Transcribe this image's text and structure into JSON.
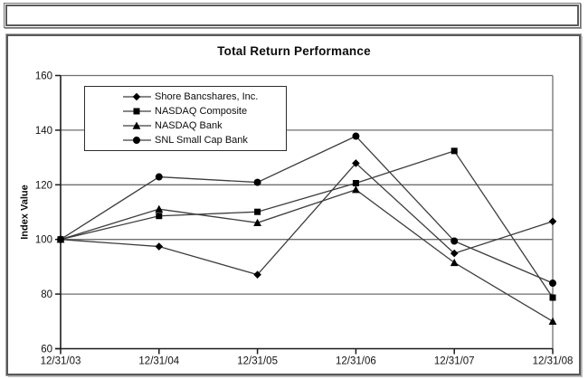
{
  "header": {
    "bar_text": ""
  },
  "chart_data": {
    "type": "line",
    "title": "Total Return Performance",
    "xlabel": "",
    "ylabel": "Index Value",
    "categories": [
      "12/31/03",
      "12/31/04",
      "12/31/05",
      "12/31/06",
      "12/31/07",
      "12/31/08"
    ],
    "series": [
      {
        "name": "Shore Bancshares, Inc.",
        "marker": "diamond",
        "values": [
          100,
          97.4,
          87.1,
          127.9,
          94.9,
          106.6
        ]
      },
      {
        "name": "NASDAQ Composite",
        "marker": "square",
        "values": [
          100,
          108.6,
          110.1,
          120.6,
          132.4,
          78.7
        ]
      },
      {
        "name": "NASDAQ Bank",
        "marker": "triangle",
        "values": [
          100,
          111.1,
          106.1,
          118.2,
          91.5,
          70.0
        ]
      },
      {
        "name": "SNL Small Cap Bank",
        "marker": "circle",
        "values": [
          100,
          122.9,
          120.9,
          137.8,
          99.4,
          84.0
        ]
      }
    ],
    "ylim": [
      60,
      160
    ],
    "ytick_step": 20,
    "grid": true,
    "legend_position": "top-left",
    "colors": {
      "line": "#3d3d3d",
      "marker": "#000000",
      "grid": "#6f6f6f",
      "axis": "#1c1c1c",
      "text": "#111111"
    }
  }
}
